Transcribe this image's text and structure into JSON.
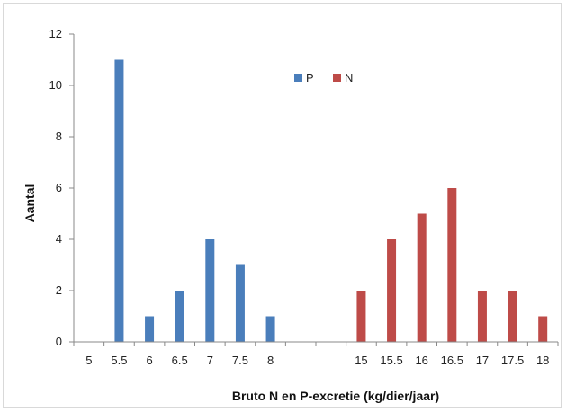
{
  "chart_data": {
    "type": "bar",
    "categories": [
      "5",
      "5.5",
      "6",
      "6.5",
      "7",
      "7.5",
      "8",
      "",
      "",
      "15",
      "15.5",
      "16",
      "16.5",
      "17",
      "17.5",
      "18"
    ],
    "series": [
      {
        "name": "P",
        "color": "#4a7ebb",
        "values": [
          0,
          11,
          1,
          2,
          4,
          3,
          1,
          0,
          0,
          0,
          0,
          0,
          0,
          0,
          0,
          0
        ]
      },
      {
        "name": "N",
        "color": "#be4b48",
        "values": [
          0,
          0,
          0,
          0,
          0,
          0,
          0,
          0,
          0,
          2,
          4,
          5,
          6,
          2,
          2,
          1
        ]
      }
    ],
    "ylim": [
      0,
      12
    ],
    "yticks": [
      "0",
      "2",
      "4",
      "6",
      "8",
      "10",
      "12"
    ],
    "xlabel": "Bruto N en P-excretie (kg/dier/jaar)",
    "ylabel": "Aantal",
    "grid": false,
    "legend_position": "top-center"
  }
}
